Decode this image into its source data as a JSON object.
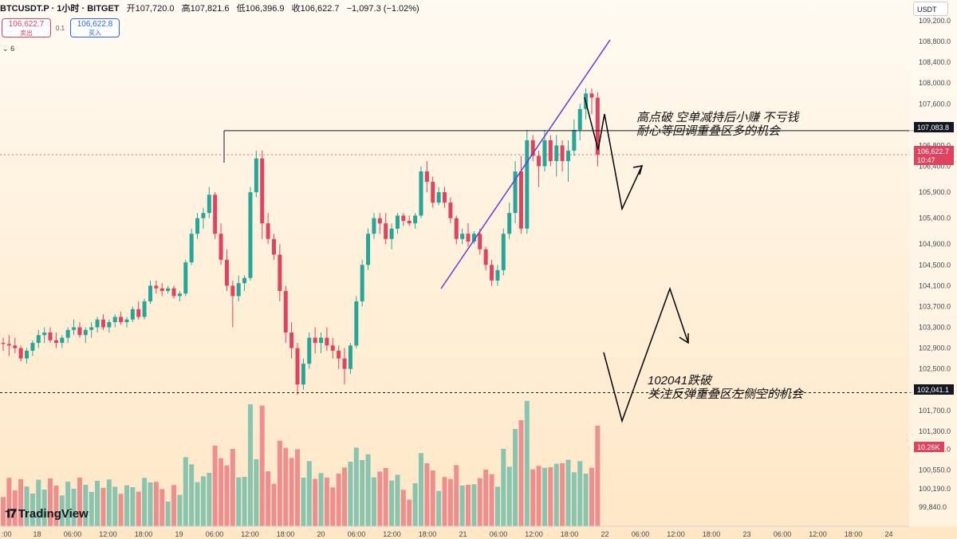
{
  "header": {
    "symbol": "BTCUSDT.P · 1小时 · BITGET",
    "open_label": "开",
    "open": "107,720.0",
    "high_label": "高",
    "high": "107,821.6",
    "low_label": "低",
    "low": "106,396.9",
    "close_label": "收",
    "close": "106,622.7",
    "change": "−1,097.3 (−1.02%)"
  },
  "trade": {
    "sell_price": "106,622.7",
    "sell_label": "卖出",
    "spread": "0.1",
    "buy_price": "106,622.8",
    "buy_label": "买入"
  },
  "indicator_toggle": "6",
  "currency": "USDT",
  "logo": "TradingView",
  "colors": {
    "up": "#26a69a",
    "down": "#e0435f",
    "trendline": "#5b3fd6",
    "accent": "#2962ff"
  },
  "chart_data": {
    "type": "candlestick",
    "symbol": "BTCUSDT.P",
    "interval": "1小时",
    "ylim": [
      99600,
      109400
    ],
    "y_ticks": [
      109200,
      108800,
      108400,
      108000,
      107600,
      107200,
      106800,
      106400,
      105900,
      105400,
      104900,
      104500,
      104100,
      103700,
      103300,
      102900,
      102500,
      102100,
      101700,
      101300,
      100950,
      100550,
      100190,
      99840
    ],
    "y_tick_labels": [
      "109,200.0",
      "108,800.0",
      "108,400.0",
      "108,000.0",
      "107,600.0",
      "107,200.0",
      "106,800.0",
      "106,400.0",
      "105,900.0",
      "105,400.0",
      "104,900.0",
      "104,500.0",
      "104,100.0",
      "103,700.0",
      "103,300.0",
      "102,900.0",
      "102,500.0",
      "102,100.0",
      "101,700.0",
      "101,300.0",
      "100,950.0",
      "100,550.0",
      "100,190.0",
      "99,840.0"
    ],
    "x_tick_labels": [
      ":00",
      "18",
      "06:00",
      "12:00",
      "18:00",
      "19",
      "06:00",
      "12:00",
      "18:00",
      "20",
      "06:00",
      "12:00",
      "18:00",
      "21",
      "06:00",
      "12:00",
      "18:00",
      "22",
      "06:00",
      "12:00",
      "18:00",
      "23",
      "06:00",
      "12:00",
      "18:00",
      "24"
    ],
    "candles_ohlc": [
      [
        103000,
        103100,
        102850,
        102980
      ],
      [
        102980,
        103150,
        102750,
        102950
      ],
      [
        102950,
        103100,
        102800,
        102900
      ],
      [
        102900,
        102950,
        102650,
        102700
      ],
      [
        102700,
        102900,
        102600,
        102850
      ],
      [
        102850,
        103050,
        102750,
        103000
      ],
      [
        103000,
        103250,
        102900,
        103150
      ],
      [
        103150,
        103300,
        103000,
        103200
      ],
      [
        103200,
        103300,
        103000,
        103050
      ],
      [
        103050,
        103200,
        102900,
        103000
      ],
      [
        103000,
        103150,
        102900,
        103100
      ],
      [
        103100,
        103300,
        103000,
        103250
      ],
      [
        103250,
        103450,
        103150,
        103300
      ],
      [
        103300,
        103400,
        103100,
        103150
      ],
      [
        103150,
        103300,
        103000,
        103250
      ],
      [
        103250,
        103400,
        103100,
        103300
      ],
      [
        103300,
        103500,
        103200,
        103450
      ],
      [
        103450,
        103550,
        103250,
        103300
      ],
      [
        103300,
        103450,
        103200,
        103400
      ],
      [
        103400,
        103550,
        103300,
        103500
      ],
      [
        103500,
        103600,
        103350,
        103400
      ],
      [
        103400,
        103500,
        103300,
        103450
      ],
      [
        103450,
        103700,
        103400,
        103650
      ],
      [
        103650,
        103800,
        103450,
        103500
      ],
      [
        103500,
        103850,
        103450,
        103800
      ],
      [
        103800,
        104200,
        103750,
        104100
      ],
      [
        104100,
        104200,
        103950,
        104050
      ],
      [
        104050,
        104150,
        103900,
        104000
      ],
      [
        104000,
        104100,
        103950,
        104050
      ],
      [
        104050,
        104100,
        103850,
        103900
      ],
      [
        103900,
        104000,
        103800,
        103950
      ],
      [
        103950,
        104600,
        103900,
        104550
      ],
      [
        104550,
        105200,
        104500,
        105100
      ],
      [
        105100,
        105500,
        105000,
        105400
      ],
      [
        105400,
        105600,
        105200,
        105500
      ],
      [
        105500,
        106000,
        105400,
        105850
      ],
      [
        105850,
        105900,
        105000,
        105100
      ],
      [
        105100,
        105300,
        104500,
        104600
      ],
      [
        104600,
        104800,
        104000,
        104100
      ],
      [
        104100,
        104200,
        103300,
        103900
      ],
      [
        103900,
        104300,
        103800,
        104150
      ],
      [
        104150,
        104300,
        104000,
        104250
      ],
      [
        104250,
        106000,
        104200,
        105900
      ],
      [
        105900,
        106700,
        105800,
        106550
      ],
      [
        106550,
        106700,
        105000,
        105300
      ],
      [
        105300,
        105500,
        104900,
        105000
      ],
      [
        105000,
        105100,
        104600,
        104700
      ],
      [
        104700,
        104900,
        103800,
        104000
      ],
      [
        104000,
        104100,
        103000,
        103200
      ],
      [
        103200,
        103400,
        102700,
        102900
      ],
      [
        102900,
        103000,
        102000,
        102200
      ],
      [
        102200,
        102700,
        102100,
        102600
      ],
      [
        102600,
        103200,
        102500,
        103100
      ],
      [
        103100,
        103300,
        102800,
        103000
      ],
      [
        103000,
        103200,
        102800,
        103100
      ],
      [
        103100,
        103300,
        102850,
        102950
      ],
      [
        102950,
        103100,
        102700,
        102850
      ],
      [
        102850,
        102950,
        102500,
        102700
      ],
      [
        102700,
        102900,
        102200,
        102500
      ],
      [
        102500,
        103000,
        102400,
        102950
      ],
      [
        102950,
        103900,
        102900,
        103800
      ],
      [
        103800,
        104600,
        103700,
        104500
      ],
      [
        104500,
        105200,
        104400,
        105100
      ],
      [
        105100,
        105500,
        105000,
        105400
      ],
      [
        105400,
        105500,
        105100,
        105300
      ],
      [
        105300,
        105500,
        104900,
        105000
      ],
      [
        105000,
        105300,
        104800,
        105200
      ],
      [
        105200,
        105500,
        105100,
        105450
      ],
      [
        105450,
        105500,
        105250,
        105350
      ],
      [
        105350,
        105450,
        105250,
        105300
      ],
      [
        105300,
        105500,
        105200,
        105450
      ],
      [
        105450,
        106400,
        105400,
        106300
      ],
      [
        106300,
        106500,
        105900,
        106100
      ],
      [
        106100,
        106200,
        105600,
        105700
      ],
      [
        105700,
        106000,
        105650,
        105900
      ],
      [
        105900,
        106000,
        105600,
        105700
      ],
      [
        105700,
        105800,
        105300,
        105400
      ],
      [
        105400,
        105450,
        104900,
        105000
      ],
      [
        105000,
        105200,
        104900,
        105100
      ],
      [
        105100,
        105300,
        104850,
        104950
      ],
      [
        104950,
        105150,
        104900,
        105100
      ],
      [
        105100,
        105200,
        104700,
        104800
      ],
      [
        104800,
        104850,
        104400,
        104500
      ],
      [
        104500,
        104600,
        104100,
        104200
      ],
      [
        104200,
        104500,
        104100,
        104400
      ],
      [
        104400,
        105200,
        104300,
        105100
      ],
      [
        105100,
        105700,
        105000,
        105500
      ],
      [
        105500,
        106500,
        105300,
        106300
      ],
      [
        106300,
        106600,
        105100,
        105200
      ],
      [
        105200,
        107100,
        105100,
        106900
      ],
      [
        106900,
        107000,
        106500,
        106600
      ],
      [
        106600,
        106700,
        106000,
        106400
      ],
      [
        106400,
        107100,
        106300,
        106900
      ],
      [
        106900,
        107000,
        106400,
        106500
      ],
      [
        106500,
        107000,
        106200,
        106800
      ],
      [
        106800,
        106900,
        106300,
        106500
      ],
      [
        106500,
        106900,
        106100,
        106700
      ],
      [
        106700,
        107300,
        106600,
        107100
      ],
      [
        107100,
        107600,
        106900,
        107500
      ],
      [
        107500,
        107900,
        107300,
        107800
      ],
      [
        107800,
        107900,
        107400,
        107720
      ],
      [
        107720,
        107821.6,
        106396.9,
        106622.7
      ]
    ],
    "volume_labels": {
      "last": "10.26K"
    },
    "reference_lines": [
      {
        "price": 107083.8,
        "label": "107,083.8"
      },
      {
        "price": 102041.1,
        "label": "102,041.1"
      }
    ],
    "last_price_label": "106,622.7",
    "countdown": "10:47",
    "annotations": [
      {
        "line1": "高点破 空单减持后小赚 不亏钱",
        "line2": "耐心等回调重叠区多的机会"
      },
      {
        "line1": "102041跌破",
        "line2": "关注反弹重叠区左侧空的机会"
      }
    ]
  }
}
